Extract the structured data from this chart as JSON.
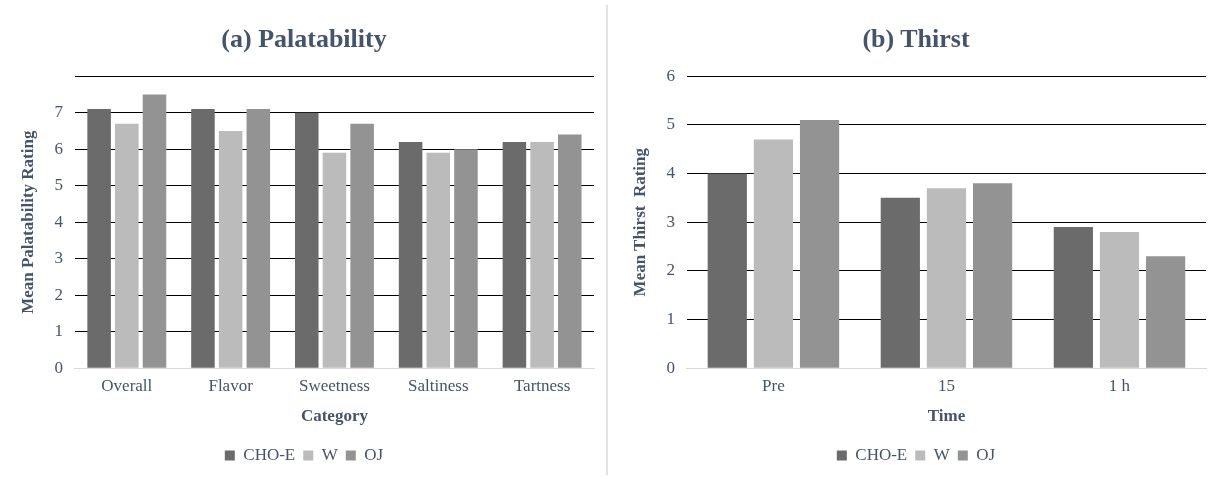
{
  "chart_data": [
    {
      "type": "bar",
      "title": "(a) Palatability",
      "xlabel": "Category",
      "ylabel": "Mean Palatability Rating",
      "categories": [
        "Overall",
        "Flavor",
        "Sweetness",
        "Saltiness",
        "Tartness"
      ],
      "series": [
        {
          "name": "CHO-E",
          "color": "#6b6b6b",
          "values": [
            7.1,
            7.1,
            7.0,
            6.2,
            6.2
          ]
        },
        {
          "name": "W",
          "color": "#bbbbbb",
          "values": [
            6.7,
            6.5,
            5.9,
            5.9,
            6.2
          ]
        },
        {
          "name": "OJ",
          "color": "#939393",
          "values": [
            7.5,
            7.1,
            6.7,
            6.0,
            6.4
          ]
        }
      ],
      "ylim": [
        0,
        8
      ],
      "yticks": [
        0,
        1,
        2,
        3,
        4,
        5,
        6,
        7,
        {
          "value": 8,
          "label": null
        }
      ],
      "grid": "y",
      "legend": "bottom"
    },
    {
      "type": "bar",
      "title": "(b) Thirst",
      "xlabel": "Time",
      "ylabel": "Mean Thirst  Rating",
      "categories": [
        "Pre",
        "15",
        "1 h"
      ],
      "series": [
        {
          "name": "CHO-E",
          "color": "#6b6b6b",
          "values": [
            4.0,
            3.5,
            2.9
          ]
        },
        {
          "name": "W",
          "color": "#bbbbbb",
          "values": [
            4.7,
            3.7,
            2.8
          ]
        },
        {
          "name": "OJ",
          "color": "#939393",
          "values": [
            5.1,
            3.8,
            2.3
          ]
        }
      ],
      "ylim": [
        0,
        6
      ],
      "yticks": [
        0,
        1,
        2,
        3,
        4,
        5,
        6
      ],
      "grid": "y",
      "legend": "bottom"
    }
  ]
}
